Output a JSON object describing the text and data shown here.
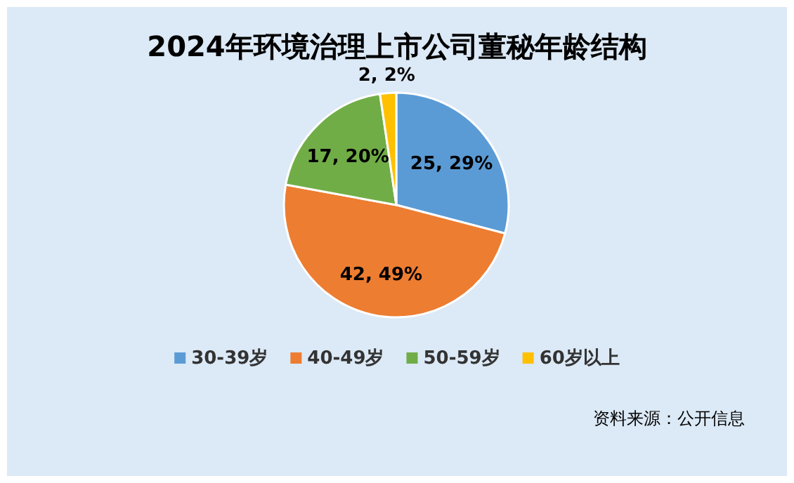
{
  "chart_data": {
    "type": "pie",
    "title": "2024年环境治理上市公司董秘年龄结构",
    "categories": [
      "30-39岁",
      "40-49岁",
      "50-59岁",
      "60岁以上"
    ],
    "values": [
      25,
      42,
      17,
      2
    ],
    "colors": [
      "#5b9bd5",
      "#ed7d31",
      "#70ad47",
      "#ffc000"
    ],
    "value_labels": [
      "25, 29%",
      "42, 49%",
      "17, 20%",
      "2, 2%"
    ],
    "legend": "bottom",
    "annotations": [
      "资料来源：公开信息"
    ]
  }
}
